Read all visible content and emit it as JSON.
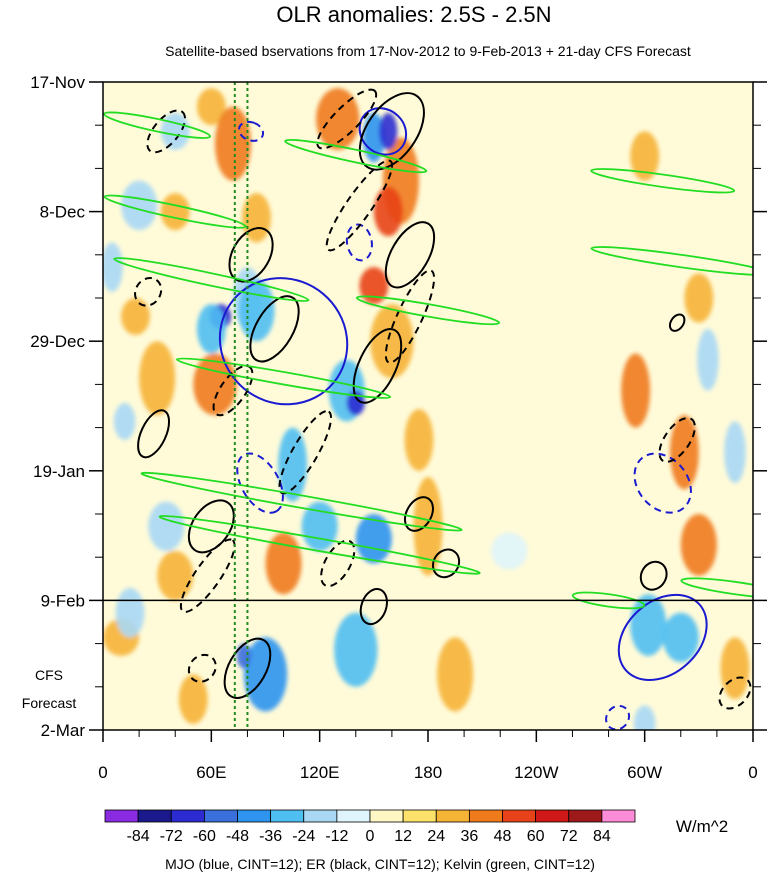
{
  "chart_data": {
    "type": "heatmap",
    "title": "OLR anomalies: 2.5S - 2.5N",
    "subtitle": "Satellite-based bservations from 17-Nov-2012 to 9-Feb-2013 + 21-day CFS Forecast",
    "x_tick_labels": [
      "0",
      "60E",
      "120E",
      "180",
      "120W",
      "60W",
      "0"
    ],
    "x_ticks_deg_east": [
      0,
      60,
      120,
      180,
      240,
      300,
      360
    ],
    "xlim": [
      0,
      360
    ],
    "y_tick_labels": [
      "17-Nov",
      "8-Dec",
      "29-Dec",
      "19-Jan",
      "9-Feb",
      "2-Mar"
    ],
    "y_ticks_days_since_start": [
      0,
      21,
      42,
      63,
      84,
      105
    ],
    "ylim": [
      0,
      105
    ],
    "y_reversed": true,
    "forecast_label": [
      "CFS",
      "Forecast"
    ],
    "forecast_start_day": 84,
    "colorbar": {
      "labels": [
        "-84",
        "-72",
        "-60",
        "-48",
        "-36",
        "-24",
        "-12",
        "0",
        "12",
        "24",
        "36",
        "48",
        "60",
        "72",
        "84"
      ],
      "colors": [
        "#8a2be2",
        "#1a1a8c",
        "#2b2bd1",
        "#3a6fdc",
        "#2f93f0",
        "#4fbff2",
        "#a9d8f5",
        "#dff4fb",
        "#fff8c4",
        "#fce26a",
        "#f6b436",
        "#ef7a1c",
        "#e8421a",
        "#d01818",
        "#9e1a1a",
        "#ff8cd8"
      ],
      "units": "W/m^2"
    },
    "reference_lines_deg_east": [
      {
        "lon": 73,
        "color": "#228b22"
      },
      {
        "lon": 80,
        "color": "#228b22"
      }
    ],
    "contour_legend": "MJO (blue, CINT=12); ER (black, CINT=12); Kelvin (green, CINT=12)",
    "series": [
      {
        "name": "MJO",
        "color": "#1a1ad0",
        "cint": 12
      },
      {
        "name": "ER",
        "color": "#000000",
        "cint": 12
      },
      {
        "name": "Kelvin",
        "color": "#22dd22",
        "cint": 12
      }
    ],
    "anomaly_patches": [
      {
        "lon": 60,
        "day": 4,
        "rx": 8,
        "ry": 3,
        "value": 24
      },
      {
        "lon": 72,
        "day": 10,
        "rx": 10,
        "ry": 6,
        "value": 36
      },
      {
        "lon": 130,
        "day": 6,
        "rx": 12,
        "ry": 5,
        "value": 36
      },
      {
        "lon": 165,
        "day": 16,
        "rx": 10,
        "ry": 7,
        "value": 36
      },
      {
        "lon": 158,
        "day": 21,
        "rx": 8,
        "ry": 4,
        "value": 48
      },
      {
        "lon": 150,
        "day": 33,
        "rx": 8,
        "ry": 3,
        "value": 48
      },
      {
        "lon": 40,
        "day": 21,
        "rx": 8,
        "ry": 3,
        "value": 24
      },
      {
        "lon": 30,
        "day": 48,
        "rx": 10,
        "ry": 6,
        "value": 24
      },
      {
        "lon": 62,
        "day": 49,
        "rx": 12,
        "ry": 5,
        "value": 36
      },
      {
        "lon": 18,
        "day": 38,
        "rx": 8,
        "ry": 3,
        "value": 24
      },
      {
        "lon": 160,
        "day": 42,
        "rx": 12,
        "ry": 6,
        "value": 24
      },
      {
        "lon": 175,
        "day": 58,
        "rx": 8,
        "ry": 5,
        "value": 24
      },
      {
        "lon": 180,
        "day": 72,
        "rx": 8,
        "ry": 8,
        "value": 24
      },
      {
        "lon": 100,
        "day": 78,
        "rx": 10,
        "ry": 5,
        "value": 36
      },
      {
        "lon": 40,
        "day": 80,
        "rx": 10,
        "ry": 4,
        "value": 24
      },
      {
        "lon": 10,
        "day": 90,
        "rx": 10,
        "ry": 3,
        "value": 24
      },
      {
        "lon": 195,
        "day": 96,
        "rx": 10,
        "ry": 6,
        "value": 24
      },
      {
        "lon": 50,
        "day": 100,
        "rx": 8,
        "ry": 4,
        "value": 24
      },
      {
        "lon": 295,
        "day": 50,
        "rx": 8,
        "ry": 6,
        "value": 36
      },
      {
        "lon": 322,
        "day": 60,
        "rx": 8,
        "ry": 6,
        "value": 36
      },
      {
        "lon": 330,
        "day": 75,
        "rx": 10,
        "ry": 5,
        "value": 36
      },
      {
        "lon": 300,
        "day": 12,
        "rx": 8,
        "ry": 4,
        "value": 24
      },
      {
        "lon": 330,
        "day": 35,
        "rx": 8,
        "ry": 4,
        "value": 24
      },
      {
        "lon": 350,
        "day": 95,
        "rx": 8,
        "ry": 5,
        "value": 24
      },
      {
        "lon": 85,
        "day": 22,
        "rx": 8,
        "ry": 4,
        "value": 24
      },
      {
        "lon": 80,
        "day": 35,
        "rx": 8,
        "ry": 5,
        "value": -24
      },
      {
        "lon": 85,
        "day": 37,
        "rx": 10,
        "ry": 5,
        "value": -36
      },
      {
        "lon": 65,
        "day": 38,
        "rx": 6,
        "ry": 2,
        "value": -72
      },
      {
        "lon": 135,
        "day": 50,
        "rx": 10,
        "ry": 5,
        "value": -36
      },
      {
        "lon": 140,
        "day": 52,
        "rx": 5,
        "ry": 2,
        "value": -72
      },
      {
        "lon": 150,
        "day": 9,
        "rx": 6,
        "ry": 4,
        "value": -48
      },
      {
        "lon": 158,
        "day": 8,
        "rx": 5,
        "ry": 3,
        "value": -72
      },
      {
        "lon": 60,
        "day": 40,
        "rx": 8,
        "ry": 4,
        "value": -36
      },
      {
        "lon": 105,
        "day": 62,
        "rx": 8,
        "ry": 6,
        "value": -36
      },
      {
        "lon": 120,
        "day": 72,
        "rx": 10,
        "ry": 4,
        "value": -36
      },
      {
        "lon": 150,
        "day": 74,
        "rx": 10,
        "ry": 4,
        "value": -48
      },
      {
        "lon": 90,
        "day": 96,
        "rx": 12,
        "ry": 6,
        "value": -48
      },
      {
        "lon": 78,
        "day": 93,
        "rx": 4,
        "ry": 2,
        "value": -60
      },
      {
        "lon": 140,
        "day": 92,
        "rx": 12,
        "ry": 6,
        "value": -36
      },
      {
        "lon": 20,
        "day": 20,
        "rx": 10,
        "ry": 4,
        "value": -24
      },
      {
        "lon": 5,
        "day": 30,
        "rx": 6,
        "ry": 4,
        "value": -24
      },
      {
        "lon": 35,
        "day": 72,
        "rx": 10,
        "ry": 4,
        "value": -24
      },
      {
        "lon": 15,
        "day": 86,
        "rx": 8,
        "ry": 4,
        "value": -24
      },
      {
        "lon": 302,
        "day": 88,
        "rx": 10,
        "ry": 5,
        "value": -36
      },
      {
        "lon": 320,
        "day": 90,
        "rx": 10,
        "ry": 4,
        "value": -36
      },
      {
        "lon": 300,
        "day": 104,
        "rx": 6,
        "ry": 3,
        "value": -24
      },
      {
        "lon": 350,
        "day": 60,
        "rx": 6,
        "ry": 5,
        "value": -24
      },
      {
        "lon": 335,
        "day": 45,
        "rx": 6,
        "ry": 5,
        "value": -24
      },
      {
        "lon": 225,
        "day": 76,
        "rx": 10,
        "ry": 3,
        "value": -12
      },
      {
        "lon": 40,
        "day": 8,
        "rx": 8,
        "ry": 3,
        "value": -24
      },
      {
        "lon": 12,
        "day": 55,
        "rx": 6,
        "ry": 3,
        "value": -24
      }
    ],
    "contours": {
      "mjo": [
        {
          "lon": 100,
          "day": 42,
          "rlon": 36,
          "rday": 10,
          "angle_deg": 40,
          "dashed": false
        },
        {
          "lon": 310,
          "day": 90,
          "rlon": 20,
          "rday": 8,
          "angle_deg": 48,
          "dashed": false
        },
        {
          "lon": 155,
          "day": 8,
          "rlon": 12,
          "rday": 4,
          "angle_deg": -45,
          "dashed": false
        },
        {
          "lon": 310,
          "day": 65,
          "rlon": 18,
          "rday": 4,
          "angle_deg": 50,
          "dashed": true
        },
        {
          "lon": 87,
          "day": 65,
          "rlon": 18,
          "rday": 3,
          "angle_deg": 60,
          "dashed": true
        },
        {
          "lon": 285,
          "day": 103,
          "rlon": 6,
          "rday": 2,
          "angle_deg": 40,
          "dashed": true
        },
        {
          "lon": 142,
          "day": 26,
          "rlon": 10,
          "rday": 2,
          "angle_deg": 80,
          "dashed": true
        },
        {
          "lon": 82,
          "day": 8,
          "rlon": 5,
          "rday": 2,
          "angle_deg": -70,
          "dashed": true
        }
      ],
      "er": [
        {
          "lon": 160,
          "day": 8,
          "rlon": 24,
          "rday": 4,
          "angle_deg": -55,
          "dashed": false
        },
        {
          "lon": 170,
          "day": 28,
          "rlon": 20,
          "rday": 3,
          "angle_deg": -60,
          "dashed": false
        },
        {
          "lon": 152,
          "day": 46,
          "rlon": 22,
          "rday": 3,
          "angle_deg": -65,
          "dashed": false
        },
        {
          "lon": 95,
          "day": 40,
          "rlon": 20,
          "rday": 3,
          "angle_deg": -60,
          "dashed": false
        },
        {
          "lon": 82,
          "day": 28,
          "rlon": 16,
          "rday": 3,
          "angle_deg": -60,
          "dashed": false
        },
        {
          "lon": 28,
          "day": 57,
          "rlon": 14,
          "rday": 2,
          "angle_deg": -65,
          "dashed": false
        },
        {
          "lon": 60,
          "day": 72,
          "rlon": 16,
          "rday": 3,
          "angle_deg": -55,
          "dashed": false
        },
        {
          "lon": 80,
          "day": 95,
          "rlon": 18,
          "rday": 3,
          "angle_deg": -60,
          "dashed": false
        },
        {
          "lon": 150,
          "day": 85,
          "rlon": 10,
          "rday": 2,
          "angle_deg": -70,
          "dashed": false
        },
        {
          "lon": 175,
          "day": 70,
          "rlon": 10,
          "rday": 2,
          "angle_deg": -60,
          "dashed": false
        },
        {
          "lon": 190,
          "day": 78,
          "rlon": 8,
          "rday": 2,
          "angle_deg": -55,
          "dashed": false
        },
        {
          "lon": 305,
          "day": 80,
          "rlon": 8,
          "rday": 2,
          "angle_deg": -60,
          "dashed": false
        },
        {
          "lon": 318,
          "day": 39,
          "rlon": 5,
          "rday": 1,
          "angle_deg": -55,
          "dashed": false
        },
        {
          "lon": 135,
          "day": 6,
          "rlon": 22,
          "rday": 2,
          "angle_deg": -45,
          "dashed": true
        },
        {
          "lon": 142,
          "day": 20,
          "rlon": 30,
          "rday": 2,
          "angle_deg": -55,
          "dashed": true
        },
        {
          "lon": 170,
          "day": 38,
          "rlon": 28,
          "rday": 2,
          "angle_deg": -65,
          "dashed": true
        },
        {
          "lon": 112,
          "day": 60,
          "rlon": 26,
          "rday": 2,
          "angle_deg": -60,
          "dashed": true
        },
        {
          "lon": 58,
          "day": 80,
          "rlon": 24,
          "rday": 2,
          "angle_deg": -55,
          "dashed": true
        },
        {
          "lon": 72,
          "day": 50,
          "rlon": 16,
          "rday": 2,
          "angle_deg": -55,
          "dashed": true
        },
        {
          "lon": 35,
          "day": 8,
          "rlon": 14,
          "rday": 2,
          "angle_deg": -50,
          "dashed": true
        },
        {
          "lon": 25,
          "day": 34,
          "rlon": 8,
          "rday": 2,
          "angle_deg": -55,
          "dashed": true
        },
        {
          "lon": 318,
          "day": 58,
          "rlon": 14,
          "rday": 2,
          "angle_deg": -55,
          "dashed": true
        },
        {
          "lon": 350,
          "day": 99,
          "rlon": 10,
          "rday": 2,
          "angle_deg": -45,
          "dashed": true
        },
        {
          "lon": 55,
          "day": 95,
          "rlon": 8,
          "rday": 2,
          "angle_deg": -45,
          "dashed": true
        },
        {
          "lon": 130,
          "day": 78,
          "rlon": 14,
          "rday": 2,
          "angle_deg": -60,
          "dashed": true
        }
      ],
      "kelvin": [
        {
          "lon": 30,
          "day": 7,
          "rlon": 30,
          "rday": 1,
          "angle_deg": 12,
          "dashed": false
        },
        {
          "lon": 40,
          "day": 21,
          "rlon": 40,
          "rday": 1,
          "angle_deg": 12,
          "dashed": false
        },
        {
          "lon": 60,
          "day": 32,
          "rlon": 55,
          "rday": 1,
          "angle_deg": 12,
          "dashed": false
        },
        {
          "lon": 100,
          "day": 48,
          "rlon": 60,
          "rday": 1,
          "angle_deg": 10,
          "dashed": false
        },
        {
          "lon": 110,
          "day": 68,
          "rlon": 90,
          "rday": 1,
          "angle_deg": 10,
          "dashed": false
        },
        {
          "lon": 120,
          "day": 75,
          "rlon": 90,
          "rday": 1,
          "angle_deg": 10,
          "dashed": false
        },
        {
          "lon": 140,
          "day": 12,
          "rlon": 40,
          "rday": 1,
          "angle_deg": 12,
          "dashed": false
        },
        {
          "lon": 180,
          "day": 37,
          "rlon": 40,
          "rday": 1,
          "angle_deg": 10,
          "dashed": false
        },
        {
          "lon": 310,
          "day": 16,
          "rlon": 40,
          "rday": 1,
          "angle_deg": 8,
          "dashed": false
        },
        {
          "lon": 320,
          "day": 29,
          "rlon": 50,
          "rday": 1,
          "angle_deg": 8,
          "dashed": false
        },
        {
          "lon": 350,
          "day": 82,
          "rlon": 30,
          "rday": 1,
          "angle_deg": 8,
          "dashed": false
        },
        {
          "lon": 280,
          "day": 84,
          "rlon": 20,
          "rday": 1,
          "angle_deg": 8,
          "dashed": false
        }
      ]
    }
  }
}
